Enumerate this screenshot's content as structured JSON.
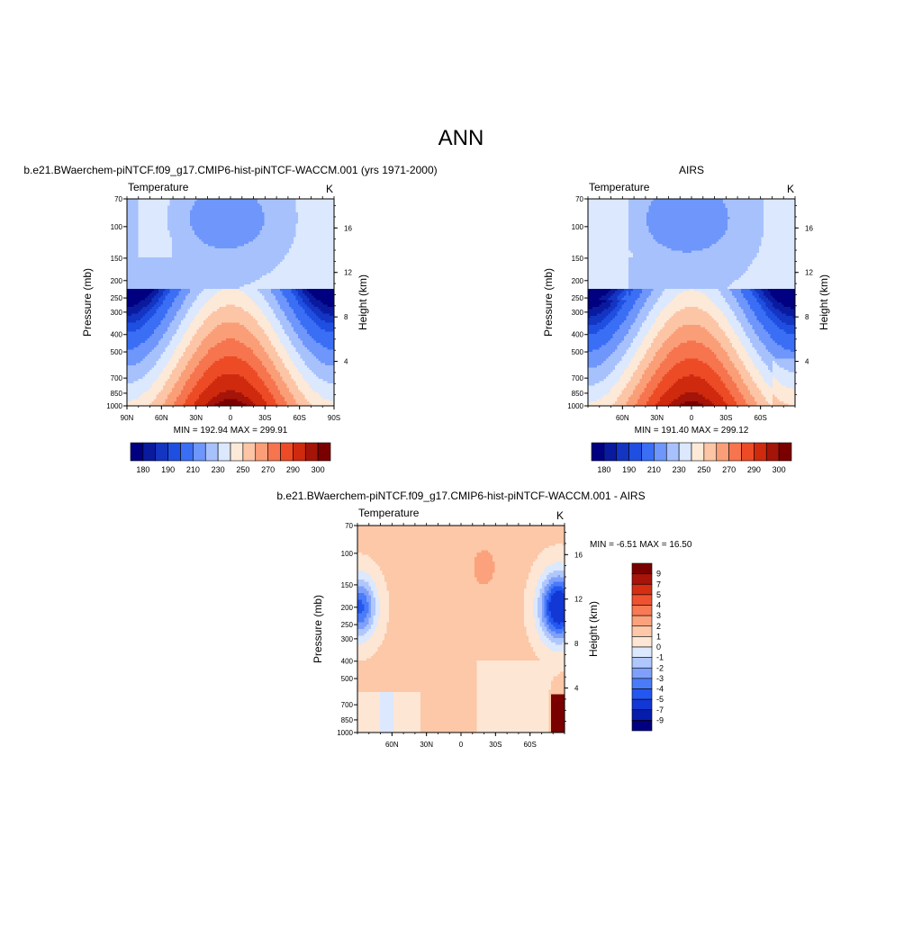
{
  "page": {
    "main_title": "ANN"
  },
  "colors": {
    "abs_scale": [
      "#000080",
      "#0a1a9e",
      "#1434c2",
      "#1f4fe0",
      "#3a6ef5",
      "#6e96fb",
      "#a7c1fd",
      "#dbe8fd",
      "#fde9d8",
      "#fcc5a6",
      "#fa9e78",
      "#f6744e",
      "#ec4b26",
      "#cf2a0e",
      "#a51408",
      "#7a0000"
    ],
    "diff_scale": [
      "#000080",
      "#061dab",
      "#1237d4",
      "#2357f0",
      "#4a7bf9",
      "#7ea0fb",
      "#b0c7fd",
      "#dce8fd",
      "#fde6d4",
      "#fcc8a8",
      "#fba27c",
      "#f77a54",
      "#ef5230",
      "#d62e12",
      "#a8130a",
      "#7a0000"
    ]
  },
  "chart_data": [
    {
      "type": "heatmap",
      "panel": "model",
      "title": "b.e21.BWaerchem-piNTCF.f09_g17.CMIP6-hist-piNTCF-WACCM.001 (yrs 1971-2000)",
      "left_label": "Temperature",
      "unit_label": "K",
      "ylabel": "Pressure (mb)",
      "ylabel_right": "Height (km)",
      "x_ticks": [
        "90N",
        "60N",
        "30N",
        "0",
        "30S",
        "60S",
        "90S"
      ],
      "x_values": [
        90,
        60,
        30,
        0,
        -30,
        -60,
        -90
      ],
      "xlim": [
        90,
        -90
      ],
      "y_ticks": [
        "70",
        "100",
        "150",
        "200",
        "250",
        "300",
        "400",
        "500",
        "700",
        "850",
        "1000"
      ],
      "y_values": [
        70,
        100,
        150,
        200,
        250,
        300,
        400,
        500,
        700,
        850,
        1000
      ],
      "ylim": [
        1000,
        70
      ],
      "y_scale": "log",
      "right_ticks": [
        "4",
        "8",
        "12",
        "16"
      ],
      "right_values": [
        4,
        8,
        12,
        16
      ],
      "stats": "MIN = 192.94  MAX = 299.91",
      "min": 192.94,
      "max": 299.91,
      "colorbar_labels": [
        "180",
        "190",
        "210",
        "230",
        "250",
        "270",
        "290",
        "300"
      ],
      "colorbar_levels": [
        175,
        180,
        185,
        190,
        200,
        210,
        220,
        230,
        240,
        250,
        260,
        270,
        280,
        290,
        295,
        300
      ]
    },
    {
      "type": "heatmap",
      "panel": "obs",
      "title": "AIRS",
      "left_label": "Temperature",
      "unit_label": "K",
      "ylabel": "Pressure (mb)",
      "ylabel_right": "Height (km)",
      "x_ticks": [
        "60N",
        "30N",
        "0",
        "30S",
        "60S"
      ],
      "x_values": [
        60,
        30,
        0,
        -30,
        -60
      ],
      "xlim": [
        90,
        -90
      ],
      "y_ticks": [
        "70",
        "100",
        "150",
        "200",
        "250",
        "300",
        "400",
        "500",
        "700",
        "850",
        "1000"
      ],
      "y_values": [
        70,
        100,
        150,
        200,
        250,
        300,
        400,
        500,
        700,
        850,
        1000
      ],
      "ylim": [
        1000,
        70
      ],
      "y_scale": "log",
      "right_ticks": [
        "4",
        "8",
        "12",
        "16"
      ],
      "right_values": [
        4,
        8,
        12,
        16
      ],
      "stats": "MIN = 191.40  MAX = 299.12",
      "min": 191.4,
      "max": 299.12,
      "colorbar_labels": [
        "180",
        "190",
        "210",
        "230",
        "250",
        "270",
        "290",
        "300"
      ],
      "colorbar_levels": [
        175,
        180,
        185,
        190,
        200,
        210,
        220,
        230,
        240,
        250,
        260,
        270,
        280,
        290,
        295,
        300
      ]
    },
    {
      "type": "heatmap",
      "panel": "diff",
      "title": "b.e21.BWaerchem-piNTCF.f09_g17.CMIP6-hist-piNTCF-WACCM.001 - AIRS",
      "left_label": "Temperature",
      "unit_label": "K",
      "ylabel": "Pressure (mb)",
      "ylabel_right": "Height (km)",
      "x_ticks": [
        "60N",
        "30N",
        "0",
        "30S",
        "60S"
      ],
      "x_values": [
        60,
        30,
        0,
        -30,
        -60
      ],
      "xlim": [
        90,
        -90
      ],
      "y_ticks": [
        "70",
        "100",
        "150",
        "200",
        "250",
        "300",
        "400",
        "500",
        "700",
        "850",
        "1000"
      ],
      "y_values": [
        70,
        100,
        150,
        200,
        250,
        300,
        400,
        500,
        700,
        850,
        1000
      ],
      "ylim": [
        1000,
        70
      ],
      "y_scale": "log",
      "right_ticks": [
        "4",
        "8",
        "12",
        "16"
      ],
      "right_values": [
        4,
        8,
        12,
        16
      ],
      "stats": "MIN =  -6.51  MAX =  16.50",
      "min": -6.51,
      "max": 16.5,
      "colorbar_labels": [
        "9",
        "7",
        "5",
        "4",
        "3",
        "2",
        "1",
        "0",
        "-1",
        "-2",
        "-3",
        "-4",
        "-5",
        "-7",
        "-9"
      ],
      "colorbar_levels": [
        9,
        7,
        5,
        4,
        3,
        2,
        1,
        0,
        -1,
        -2,
        -3,
        -4,
        -5,
        -7,
        -9
      ]
    }
  ]
}
